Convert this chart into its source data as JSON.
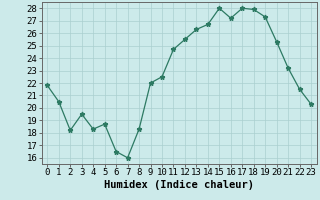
{
  "x": [
    0,
    1,
    2,
    3,
    4,
    5,
    6,
    7,
    8,
    9,
    10,
    11,
    12,
    13,
    14,
    15,
    16,
    17,
    18,
    19,
    20,
    21,
    22,
    23
  ],
  "y": [
    21.8,
    20.5,
    18.2,
    19.5,
    18.3,
    18.7,
    16.5,
    16.0,
    18.3,
    22.0,
    22.5,
    24.7,
    25.5,
    26.3,
    26.7,
    28.0,
    27.2,
    28.0,
    27.9,
    27.3,
    25.3,
    23.2,
    21.5,
    20.3
  ],
  "line_color": "#2d7a63",
  "marker": "*",
  "marker_size": 3.5,
  "bg_color": "#cceaea",
  "grid_color": "#aacfcf",
  "xlabel": "Humidex (Indice chaleur)",
  "ylabel_ticks": [
    16,
    17,
    18,
    19,
    20,
    21,
    22,
    23,
    24,
    25,
    26,
    27,
    28
  ],
  "xlim": [
    -0.5,
    23.5
  ],
  "ylim": [
    15.5,
    28.5
  ],
  "xlabel_fontsize": 7.5,
  "tick_fontsize": 6.5
}
